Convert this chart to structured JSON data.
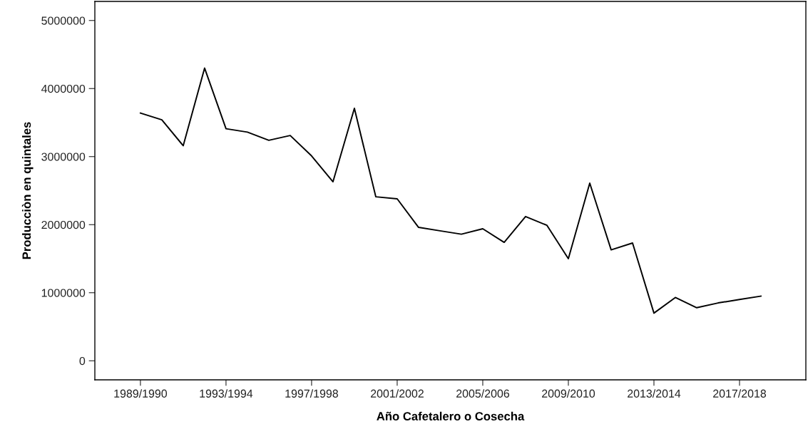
{
  "chart_data": {
    "type": "line",
    "xlabel": "Año Cafetalero o Cosecha",
    "ylabel": "Producciòn en quintales",
    "categories": [
      "1989/1990",
      null,
      null,
      null,
      "1993/1994",
      null,
      null,
      null,
      "1997/1998",
      null,
      null,
      null,
      "2001/2002",
      null,
      null,
      null,
      "2005/2006",
      null,
      null,
      null,
      "2009/2010",
      null,
      null,
      null,
      "2013/2014",
      null,
      null,
      null,
      "2017/2018",
      null
    ],
    "series": [
      {
        "color": "#000000",
        "values": [
          3640000,
          3540000,
          3160000,
          4300000,
          3410000,
          3360000,
          3240000,
          3310000,
          3010000,
          2630000,
          3710000,
          2410000,
          2380000,
          1960000,
          1910000,
          1860000,
          1940000,
          1740000,
          2120000,
          1990000,
          1500000,
          2610000,
          1630000,
          1730000,
          700000,
          930000,
          780000,
          850000,
          900000,
          950000
        ]
      }
    ],
    "ylim": [
      -280000,
      5280000
    ],
    "yticks": [
      0,
      1000000,
      2000000,
      3000000,
      4000000,
      5000000
    ],
    "grid": false,
    "legend": false,
    "marker": "none",
    "line_style": "solid"
  }
}
